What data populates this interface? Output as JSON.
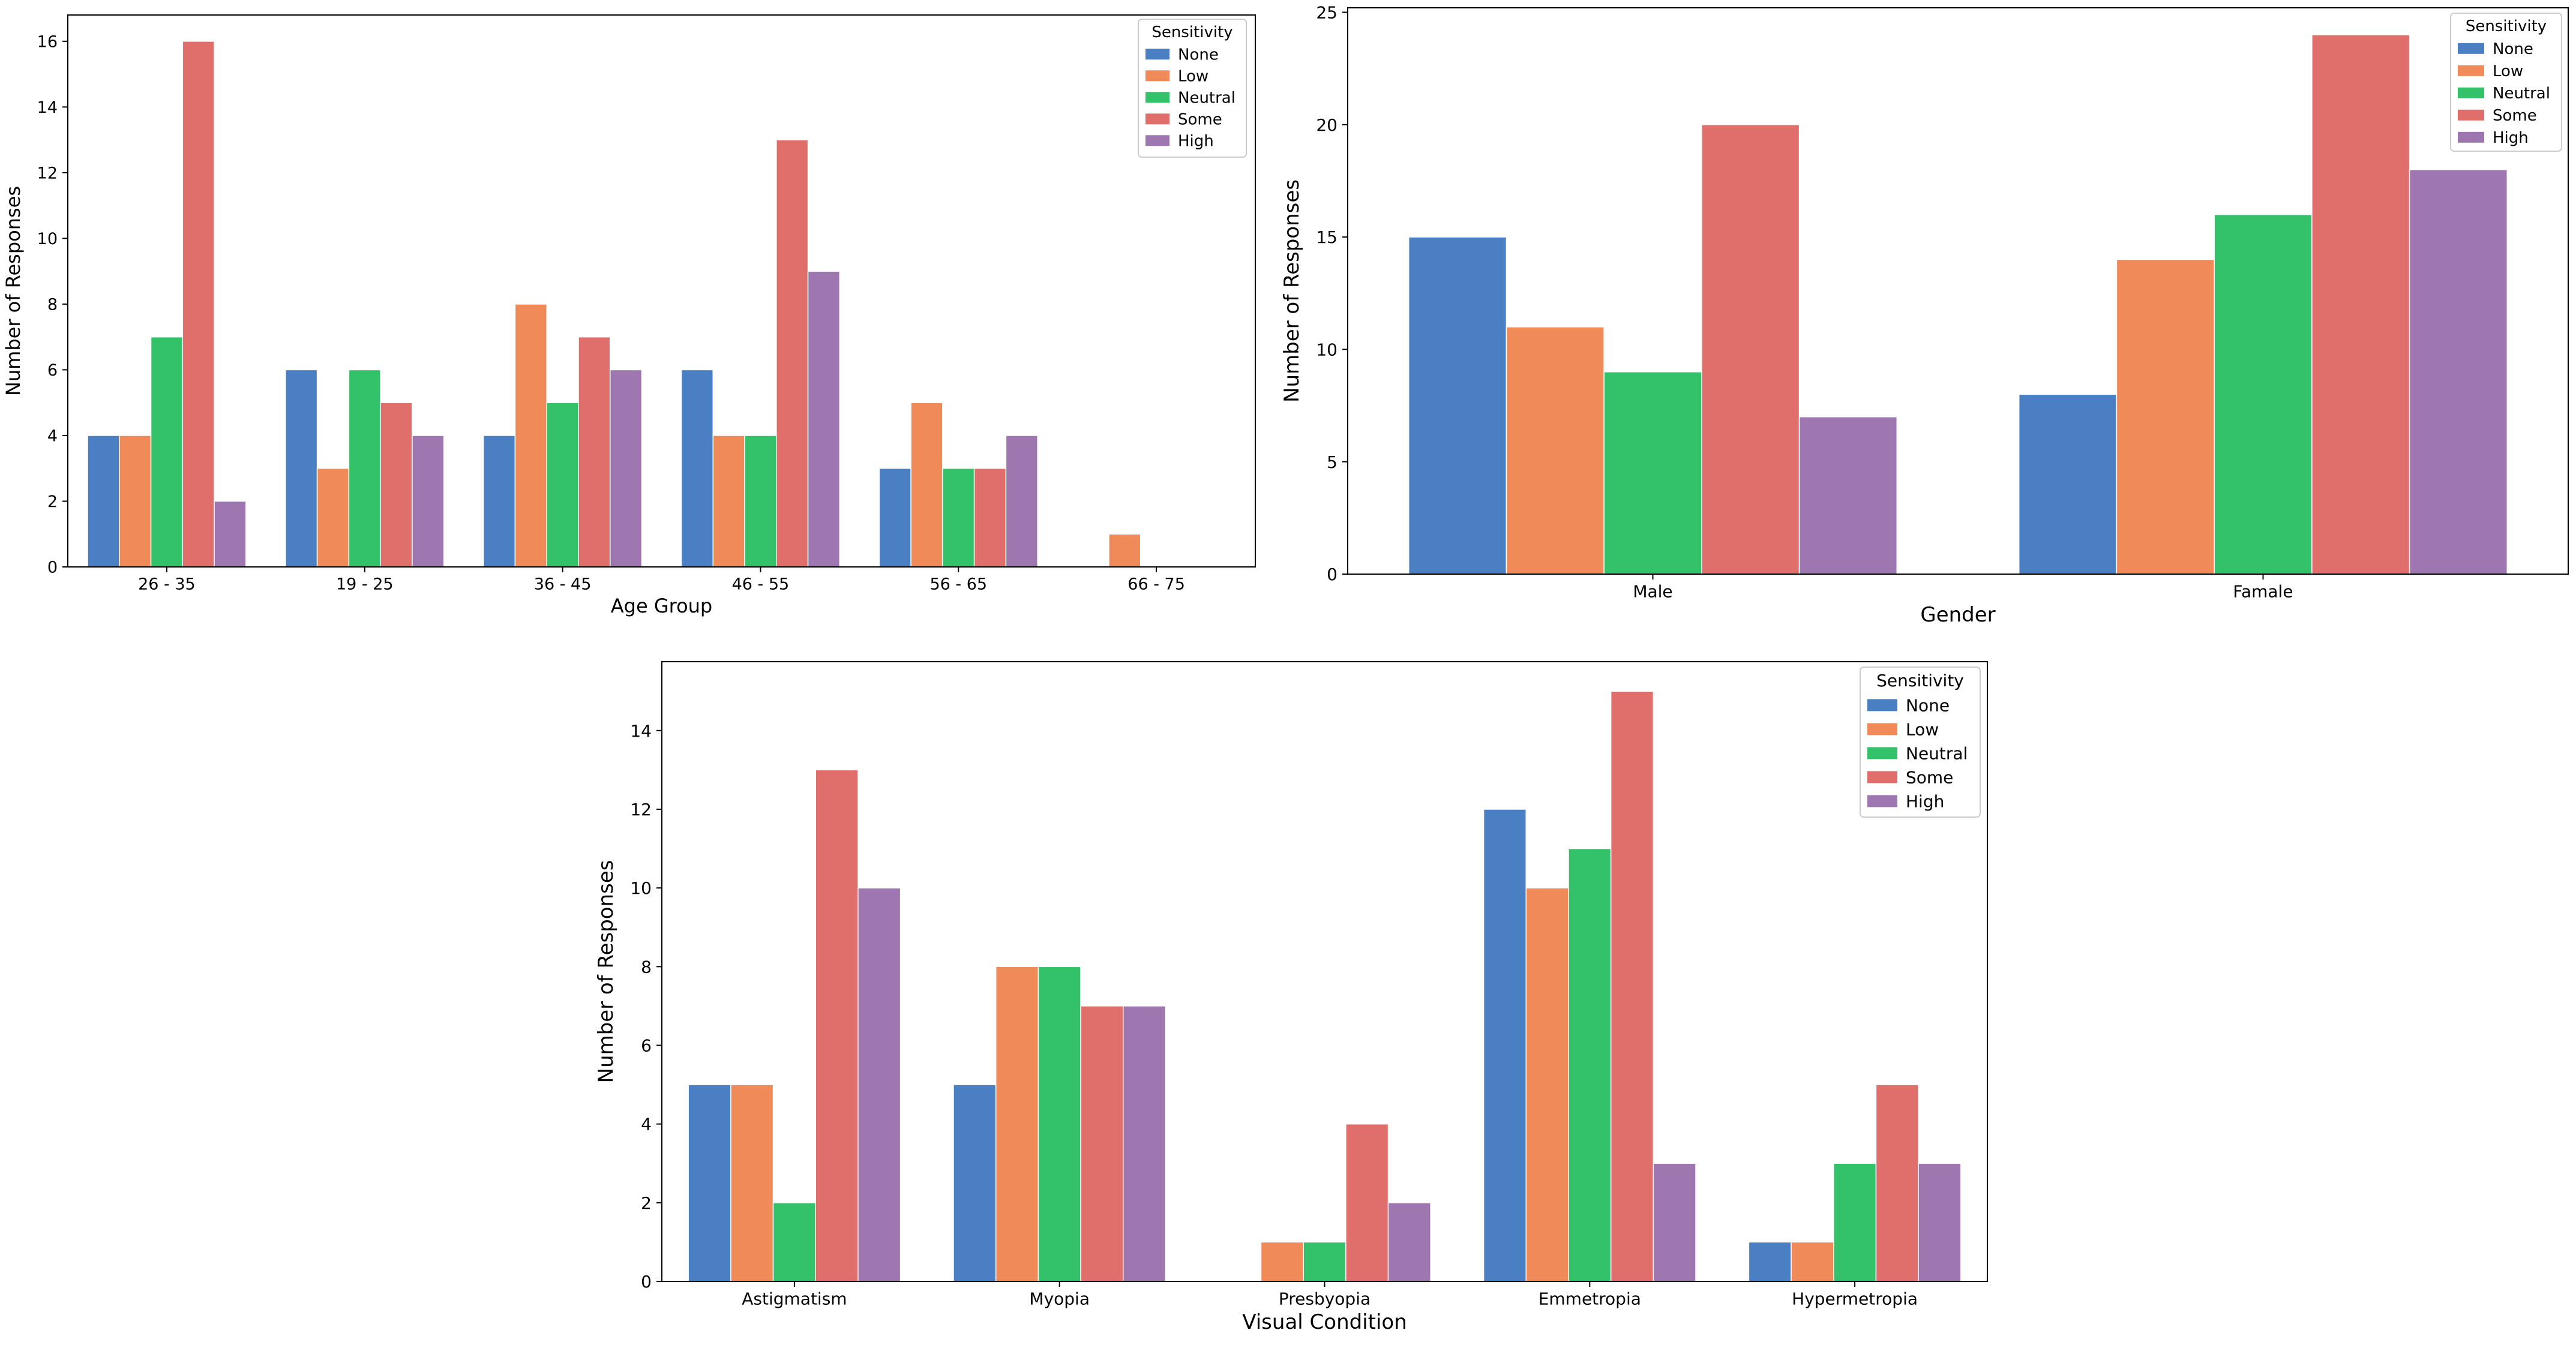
{
  "colors": {
    "None": "#4a7fc4",
    "Low": "#f08a59",
    "Neutral": "#33c26a",
    "Some": "#e06f6b",
    "High": "#9f77b0"
  },
  "chart_data": [
    {
      "type": "bar",
      "title": "",
      "xlabel": "Age Group",
      "ylabel": "Number of Responses",
      "ylim": [
        0,
        16.8
      ],
      "yticks": [
        0,
        2,
        4,
        6,
        8,
        10,
        12,
        14,
        16
      ],
      "grid": false,
      "legend": {
        "title": "Sensitivity",
        "position": "top-right"
      },
      "categories": [
        "26 - 35",
        "19 - 25",
        "36 - 45",
        "46 - 55",
        "56 - 65",
        "66 - 75"
      ],
      "series": [
        {
          "name": "None",
          "values": [
            4,
            6,
            4,
            6,
            3,
            0
          ]
        },
        {
          "name": "Low",
          "values": [
            4,
            3,
            8,
            4,
            5,
            1
          ]
        },
        {
          "name": "Neutral",
          "values": [
            7,
            6,
            5,
            4,
            3,
            0
          ]
        },
        {
          "name": "Some",
          "values": [
            16,
            5,
            7,
            13,
            3,
            0
          ]
        },
        {
          "name": "High",
          "values": [
            2,
            4,
            6,
            9,
            4,
            0
          ]
        }
      ]
    },
    {
      "type": "bar",
      "title": "",
      "xlabel": "Gender",
      "ylabel": "Number of Responses",
      "ylim": [
        0,
        25.2
      ],
      "yticks": [
        0,
        5,
        10,
        15,
        20,
        25
      ],
      "grid": false,
      "legend": {
        "title": "Sensitivity",
        "position": "top-right"
      },
      "categories": [
        "Male",
        "Famale"
      ],
      "series": [
        {
          "name": "None",
          "values": [
            15,
            8
          ]
        },
        {
          "name": "Low",
          "values": [
            11,
            14
          ]
        },
        {
          "name": "Neutral",
          "values": [
            9,
            16
          ]
        },
        {
          "name": "Some",
          "values": [
            20,
            24
          ]
        },
        {
          "name": "High",
          "values": [
            7,
            18
          ]
        }
      ]
    },
    {
      "type": "bar",
      "title": "",
      "xlabel": "Visual Condition",
      "ylabel": "Number of Responses",
      "ylim": [
        0,
        15.75
      ],
      "yticks": [
        0,
        2,
        4,
        6,
        8,
        10,
        12,
        14
      ],
      "grid": false,
      "legend": {
        "title": "Sensitivity",
        "position": "top-right"
      },
      "categories": [
        "Astigmatism",
        "Myopia",
        "Presbyopia",
        "Emmetropia",
        "Hypermetropia"
      ],
      "series": [
        {
          "name": "None",
          "values": [
            5,
            5,
            0,
            12,
            1
          ]
        },
        {
          "name": "Low",
          "values": [
            5,
            8,
            1,
            10,
            1
          ]
        },
        {
          "name": "Neutral",
          "values": [
            2,
            8,
            1,
            11,
            3
          ]
        },
        {
          "name": "Some",
          "values": [
            13,
            7,
            4,
            15,
            5
          ]
        },
        {
          "name": "High",
          "values": [
            10,
            7,
            2,
            3,
            3
          ]
        }
      ]
    }
  ]
}
